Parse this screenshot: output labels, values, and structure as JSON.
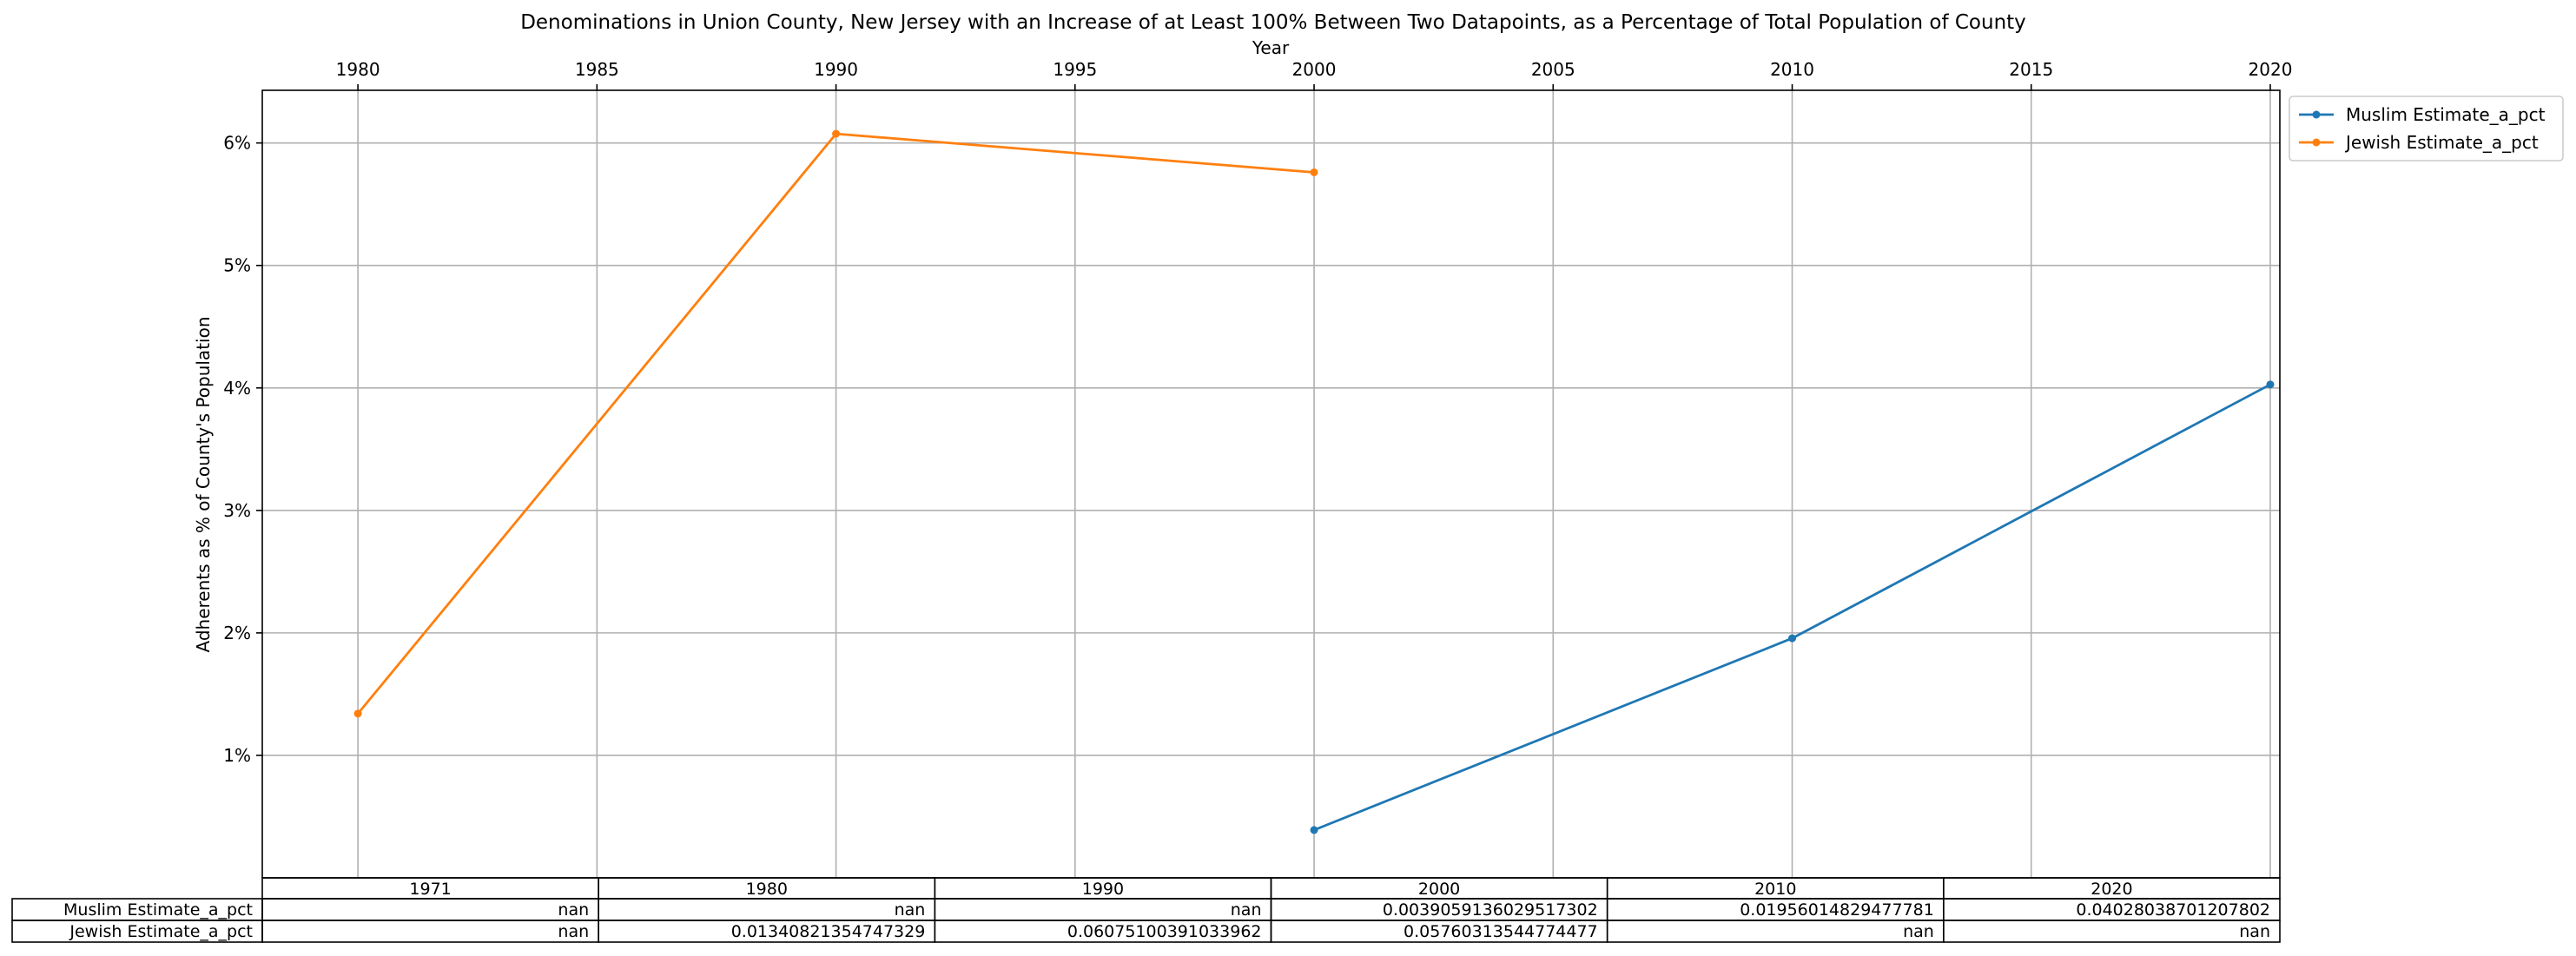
{
  "chart_data": {
    "type": "line",
    "title": "Denominations in Union County, New Jersey with an Increase of at Least 100% Between Two Datapoints, as a Percentage of Total Population of County",
    "xlabel": "Year",
    "ylabel": "Adherents as % of County's Population",
    "x_ticks": [
      1980,
      1985,
      1990,
      1995,
      2000,
      2005,
      2010,
      2015,
      2020
    ],
    "x_tick_labels": [
      "1980",
      "1985",
      "1990",
      "1995",
      "2000",
      "2005",
      "2010",
      "2015",
      "2020"
    ],
    "y_ticks": [
      0.01,
      0.02,
      0.03,
      0.04,
      0.05,
      0.06
    ],
    "y_tick_labels": [
      "1%",
      "2%",
      "3%",
      "4%",
      "5%",
      "6%"
    ],
    "xlim": [
      1978,
      2020.2
    ],
    "ylim": [
      0.0,
      0.0643
    ],
    "grid": true,
    "legend_placement": "outside-top-right",
    "series": [
      {
        "name": "Muslim Estimate_a_pct",
        "color": "#1f77b4",
        "x": [
          2000,
          2010,
          2020
        ],
        "y": [
          0.0039059136029517302,
          0.01956014829477781,
          0.04028038701207802
        ]
      },
      {
        "name": "Jewish Estimate_a_pct",
        "color": "#ff7f0e",
        "x": [
          1980,
          1990,
          2000
        ],
        "y": [
          0.01340821354747329,
          0.06075100391033962,
          0.05760313544774477
        ]
      }
    ],
    "table": {
      "columns": [
        "1971",
        "1980",
        "1990",
        "2000",
        "2010",
        "2020"
      ],
      "rows": [
        {
          "label": "Muslim Estimate_a_pct",
          "cells": [
            "nan",
            "nan",
            "nan",
            "0.0039059136029517302",
            "0.01956014829477781",
            "0.04028038701207802"
          ]
        },
        {
          "label": "Jewish Estimate_a_pct",
          "cells": [
            "nan",
            "0.01340821354747329",
            "0.06075100391033962",
            "0.05760313544774477",
            "nan",
            "nan"
          ]
        }
      ]
    }
  }
}
